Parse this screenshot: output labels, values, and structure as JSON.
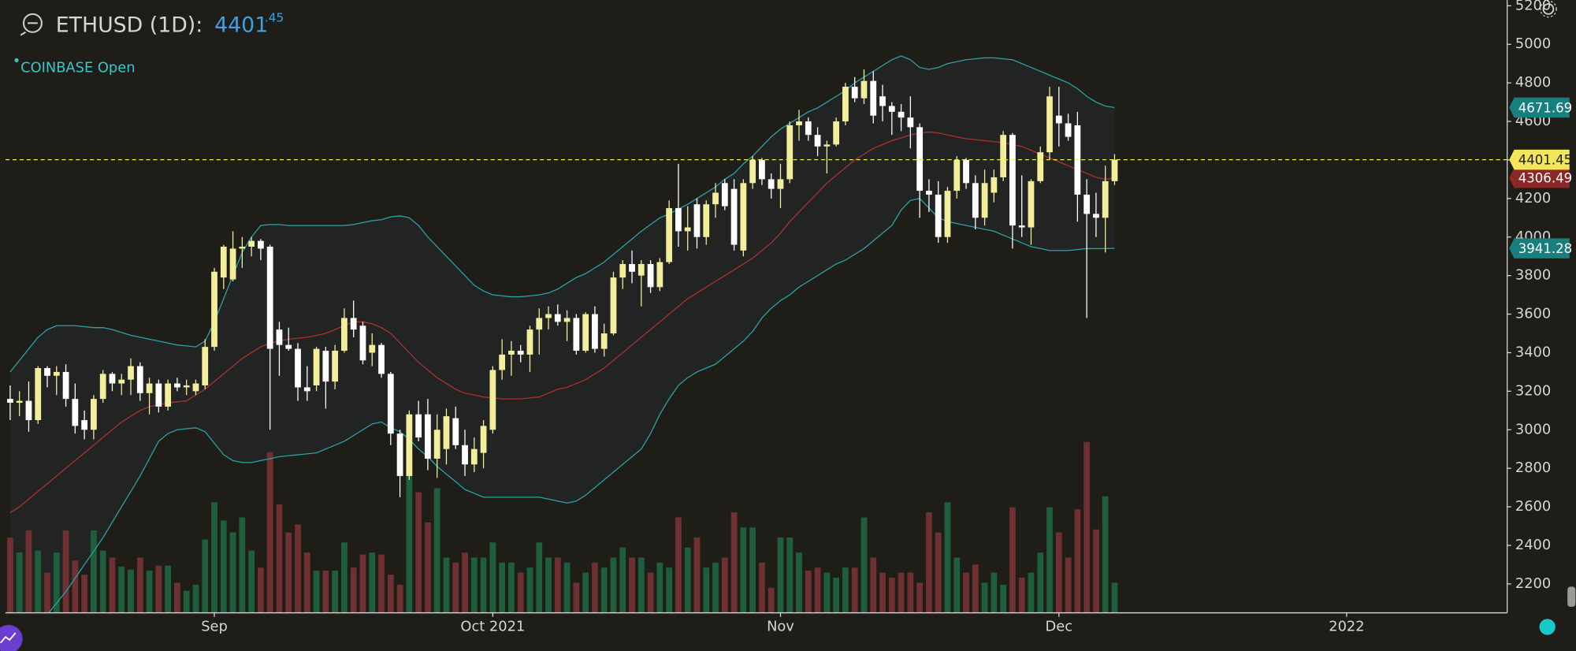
{
  "header": {
    "symbol": "ETHUSD (1D):",
    "price": "4401",
    "price_decimals": ".45",
    "exchange": "COINBASE Open"
  },
  "chart_data": {
    "type": "candlestick",
    "ylim": [
      2050,
      5230
    ],
    "yticks": [
      2200,
      2400,
      2600,
      2800,
      3000,
      3200,
      3400,
      3600,
      3800,
      4000,
      4200,
      4400,
      4600,
      4800,
      5000,
      5200
    ],
    "xlim": [
      -0.5,
      161.3
    ],
    "xticks": [
      {
        "value": 22,
        "label": "Sep"
      },
      {
        "value": 52,
        "label": "Oct 2021"
      },
      {
        "value": 83,
        "label": "Nov"
      },
      {
        "value": 113,
        "label": "Dec"
      },
      {
        "value": 144,
        "label": "2022"
      }
    ],
    "grid": false,
    "up_color": "#f2ee9c",
    "down_color": "#ffffff",
    "volume_up_color": "#1f5e3c",
    "volume_down_color": "#6e3030",
    "last_price_color": "#f3e65a",
    "open": [
      3160,
      3140,
      3150,
      3050,
      3320,
      3280,
      3300,
      3160,
      3050,
      3000,
      3160,
      3290,
      3240,
      3260,
      3330,
      3190,
      3240,
      3120,
      3240,
      3220,
      3200,
      3230,
      3430,
      3790,
      3780,
      3940,
      3950,
      3980,
      3950,
      3520,
      3440,
      3420,
      3220,
      3230,
      3410,
      3250,
      3410,
      3580,
      3540,
      3400,
      3440,
      3290,
      2980,
      2760,
      3080,
      3080,
      2850,
      2900,
      3060,
      2920,
      2820,
      2880,
      3000,
      3310,
      3390,
      3410,
      3390,
      3520,
      3580,
      3600,
      3560,
      3580,
      3410,
      3600,
      3420,
      3500,
      3790,
      3860,
      3800,
      3860,
      3740,
      3870,
      4150,
      4030,
      4170,
      4000,
      4170,
      4280,
      4250,
      3930,
      4280,
      4400,
      4300,
      4250,
      4300,
      4580,
      4600,
      4530,
      4470,
      4480,
      4600,
      4780,
      4720,
      4810,
      4730,
      4680,
      4650,
      4620,
      4570,
      4240,
      4220,
      4000,
      4240,
      4400,
      4280,
      4100,
      4230,
      4310,
      4530,
      4060,
      4050,
      4290,
      4440,
      4630,
      4590,
      4580,
      4220,
      4120,
      4100,
      4290
    ],
    "high": [
      3230,
      3200,
      3250,
      3330,
      3330,
      3330,
      3340,
      3240,
      3100,
      3180,
      3310,
      3300,
      3290,
      3370,
      3350,
      3270,
      3260,
      3260,
      3270,
      3260,
      3260,
      3470,
      3840,
      3960,
      4030,
      4000,
      4000,
      3990,
      3960,
      3560,
      3530,
      3450,
      3330,
      3430,
      3430,
      3440,
      3630,
      3670,
      3560,
      3500,
      3450,
      3300,
      3000,
      3100,
      3150,
      3160,
      3080,
      3110,
      3120,
      3000,
      2960,
      3050,
      3330,
      3470,
      3460,
      3440,
      3540,
      3630,
      3640,
      3650,
      3620,
      3600,
      3610,
      3640,
      3550,
      3820,
      3880,
      3930,
      3880,
      3880,
      3890,
      4190,
      4380,
      4160,
      4200,
      4190,
      4280,
      4300,
      4300,
      4300,
      4420,
      4410,
      4330,
      4380,
      4600,
      4660,
      4620,
      4570,
      4500,
      4620,
      4800,
      4830,
      4870,
      4860,
      4790,
      4700,
      4690,
      4730,
      4590,
      4300,
      4290,
      4260,
      4420,
      4410,
      4320,
      4350,
      4350,
      4550,
      4540,
      4320,
      4300,
      4470,
      4780,
      4780,
      4640,
      4650,
      4300,
      4230,
      4370,
      4430
    ],
    "low": [
      3050,
      3070,
      2990,
      3030,
      3220,
      3180,
      3120,
      2980,
      2950,
      2950,
      3140,
      3200,
      3180,
      3180,
      3150,
      3080,
      3090,
      3100,
      3200,
      3180,
      3180,
      3210,
      3410,
      3730,
      3770,
      3840,
      3900,
      3880,
      3000,
      3280,
      3410,
      3150,
      3150,
      3200,
      3110,
      3210,
      3400,
      3480,
      3340,
      3330,
      3270,
      2920,
      2650,
      2740,
      2940,
      2790,
      2750,
      2820,
      2900,
      2760,
      2780,
      2800,
      2980,
      3260,
      3280,
      3350,
      3300,
      3390,
      3520,
      3540,
      3460,
      3390,
      3400,
      3400,
      3380,
      3490,
      3730,
      3760,
      3640,
      3710,
      3720,
      3860,
      3950,
      3930,
      3940,
      3960,
      4100,
      4140,
      3930,
      3900,
      4250,
      4270,
      4200,
      4150,
      4280,
      4500,
      4500,
      4420,
      4330,
      4470,
      4580,
      4700,
      4690,
      4590,
      4600,
      4530,
      4550,
      4460,
      4100,
      4130,
      3970,
      3970,
      4200,
      4250,
      4040,
      4060,
      4180,
      4290,
      3940,
      4000,
      3960,
      4280,
      4400,
      4470,
      4500,
      4080,
      3580,
      4000,
      3920,
      4270
    ],
    "close": [
      3140,
      3150,
      3050,
      3320,
      3280,
      3300,
      3160,
      3020,
      3000,
      3160,
      3290,
      3240,
      3260,
      3330,
      3190,
      3240,
      3120,
      3240,
      3220,
      3230,
      3240,
      3430,
      3820,
      3950,
      3940,
      3950,
      3980,
      3940,
      3420,
      3440,
      3420,
      3220,
      3200,
      3420,
      3250,
      3410,
      3580,
      3520,
      3360,
      3440,
      3290,
      2980,
      2760,
      3080,
      2960,
      2850,
      3000,
      3070,
      2920,
      2820,
      2900,
      3020,
      3310,
      3390,
      3410,
      3390,
      3520,
      3580,
      3600,
      3560,
      3580,
      3410,
      3600,
      3420,
      3500,
      3790,
      3860,
      3820,
      3860,
      3740,
      3870,
      4150,
      4030,
      4050,
      4000,
      4170,
      4230,
      4160,
      3960,
      4280,
      4400,
      4300,
      4250,
      4300,
      4580,
      4600,
      4530,
      4470,
      4480,
      4600,
      4780,
      4720,
      4810,
      4630,
      4680,
      4650,
      4620,
      4570,
      4240,
      4220,
      4000,
      4240,
      4400,
      4280,
      4100,
      4280,
      4310,
      4530,
      4060,
      4050,
      4290,
      4440,
      4730,
      4590,
      4520,
      4220,
      4120,
      4100,
      4290,
      4401.45
    ],
    "volume": [
      75,
      60,
      82,
      62,
      40,
      60,
      82,
      52,
      38,
      82,
      62,
      55,
      46,
      43,
      55,
      42,
      47,
      47,
      30,
      22,
      28,
      73,
      110,
      92,
      80,
      95,
      62,
      45,
      160,
      108,
      80,
      88,
      60,
      42,
      42,
      42,
      70,
      45,
      58,
      60,
      58,
      38,
      28,
      160,
      120,
      90,
      124,
      55,
      50,
      60,
      55,
      55,
      70,
      50,
      50,
      40,
      45,
      70,
      55,
      55,
      50,
      30,
      40,
      50,
      45,
      55,
      65,
      55,
      55,
      40,
      50,
      45,
      95,
      65,
      75,
      45,
      50,
      55,
      100,
      85,
      85,
      50,
      25,
      75,
      75,
      60,
      42,
      45,
      40,
      35,
      45,
      45,
      95,
      55,
      40,
      35,
      40,
      40,
      30,
      100,
      80,
      110,
      55,
      40,
      48,
      30,
      40,
      28,
      105,
      35,
      40,
      60,
      105,
      80,
      55,
      103,
      170,
      83,
      116,
      30
    ],
    "bands": [
      {
        "color": "#2aa3a8",
        "label_color": "#17807f",
        "values": [
          3300,
          3360,
          3420,
          3480,
          3520,
          3540,
          3540,
          3540,
          3535,
          3530,
          3530,
          3520,
          3505,
          3490,
          3480,
          3470,
          3460,
          3450,
          3440,
          3435,
          3430,
          3460,
          3560,
          3680,
          3800,
          3920,
          4000,
          4060,
          4065,
          4065,
          4060,
          4060,
          4060,
          4060,
          4060,
          4060,
          4060,
          4065,
          4075,
          4085,
          4090,
          4105,
          4110,
          4100,
          4060,
          4000,
          3950,
          3900,
          3850,
          3800,
          3750,
          3720,
          3700,
          3695,
          3690,
          3690,
          3695,
          3700,
          3710,
          3730,
          3760,
          3790,
          3810,
          3840,
          3870,
          3910,
          3950,
          3990,
          4030,
          4065,
          4100,
          4120,
          4145,
          4170,
          4200,
          4230,
          4260,
          4300,
          4330,
          4380,
          4420,
          4470,
          4520,
          4560,
          4590,
          4620,
          4650,
          4670,
          4700,
          4730,
          4760,
          4800,
          4830,
          4860,
          4890,
          4920,
          4940,
          4920,
          4880,
          4870,
          4880,
          4900,
          4910,
          4920,
          4925,
          4930,
          4930,
          4925,
          4920,
          4900,
          4880,
          4860,
          4840,
          4820,
          4800,
          4770,
          4730,
          4700,
          4680,
          4671.69
        ]
      },
      {
        "color": "#b0302f",
        "label_color": "#8c2727",
        "values": [
          2570,
          2600,
          2640,
          2680,
          2720,
          2760,
          2800,
          2840,
          2880,
          2920,
          2960,
          3000,
          3040,
          3070,
          3100,
          3120,
          3130,
          3140,
          3145,
          3150,
          3180,
          3210,
          3250,
          3290,
          3330,
          3370,
          3400,
          3430,
          3450,
          3460,
          3470,
          3475,
          3480,
          3490,
          3500,
          3520,
          3540,
          3560,
          3560,
          3550,
          3530,
          3500,
          3450,
          3400,
          3350,
          3310,
          3270,
          3240,
          3210,
          3190,
          3180,
          3170,
          3165,
          3160,
          3160,
          3160,
          3165,
          3170,
          3190,
          3210,
          3220,
          3240,
          3260,
          3290,
          3320,
          3360,
          3400,
          3440,
          3480,
          3520,
          3560,
          3600,
          3640,
          3680,
          3710,
          3740,
          3770,
          3800,
          3830,
          3860,
          3890,
          3930,
          3970,
          4020,
          4080,
          4130,
          4180,
          4230,
          4280,
          4320,
          4360,
          4400,
          4430,
          4460,
          4480,
          4500,
          4515,
          4530,
          4540,
          4545,
          4540,
          4530,
          4520,
          4510,
          4505,
          4500,
          4495,
          4490,
          4480,
          4470,
          4450,
          4430,
          4410,
          4390,
          4370,
          4350,
          4330,
          4310,
          4300,
          4306.49
        ]
      },
      {
        "color": "#2aa3a8",
        "label_color": "#17807f",
        "values": [
          1800,
          1860,
          1920,
          1980,
          2040,
          2100,
          2160,
          2230,
          2300,
          2370,
          2440,
          2520,
          2600,
          2680,
          2760,
          2850,
          2940,
          2980,
          3000,
          3005,
          3010,
          2990,
          2930,
          2870,
          2840,
          2830,
          2830,
          2840,
          2850,
          2860,
          2865,
          2870,
          2875,
          2880,
          2900,
          2920,
          2940,
          2970,
          3000,
          3030,
          3040,
          3010,
          2990,
          2950,
          2900,
          2860,
          2810,
          2770,
          2730,
          2690,
          2670,
          2650,
          2650,
          2650,
          2650,
          2650,
          2650,
          2650,
          2640,
          2630,
          2620,
          2630,
          2660,
          2700,
          2740,
          2780,
          2820,
          2860,
          2900,
          2980,
          3080,
          3160,
          3230,
          3270,
          3300,
          3320,
          3340,
          3380,
          3420,
          3460,
          3510,
          3580,
          3630,
          3670,
          3700,
          3740,
          3770,
          3800,
          3830,
          3860,
          3880,
          3910,
          3940,
          3980,
          4020,
          4060,
          4140,
          4190,
          4200,
          4150,
          4100,
          4080,
          4070,
          4060,
          4050,
          4040,
          4030,
          4010,
          3990,
          3970,
          3950,
          3940,
          3930,
          3930,
          3930,
          3935,
          3940,
          3940,
          3940,
          3941.28
        ]
      }
    ]
  }
}
